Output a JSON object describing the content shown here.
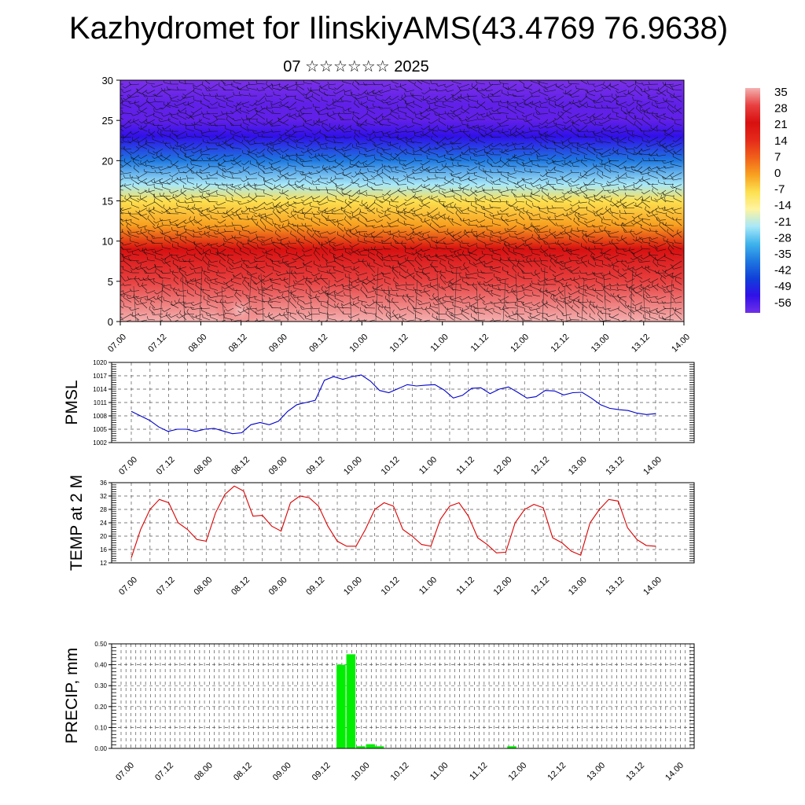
{
  "title": "Kazhydromet for IlinskiyAMS(43.4769 76.9638)",
  "subtitle": "07 ☆☆☆☆☆☆ 2025",
  "chart_data": [
    {
      "type": "heatmap",
      "name": "vertical-profile",
      "ylim": [
        0,
        30
      ],
      "yticks": [
        0,
        5,
        10,
        15,
        20,
        25,
        30
      ],
      "xticks": [
        "07.00",
        "07.12",
        "08.00",
        "08.12",
        "09.00",
        "09.12",
        "10.00",
        "10.12",
        "11.00",
        "11.12",
        "12.00",
        "12.12",
        "13.00",
        "13.12",
        "14.00"
      ],
      "colorbar": {
        "labels": [
          35,
          28,
          21,
          14,
          7,
          0,
          -7,
          -14,
          -21,
          -28,
          -35,
          -42,
          -49,
          -56
        ],
        "colors": [
          "#f4b0b0",
          "#e84040",
          "#d81010",
          "#e42a1a",
          "#f0601a",
          "#f8a020",
          "#fce050",
          "#fff4a0",
          "#a8e8f8",
          "#40b4ec",
          "#1e78e0",
          "#1040d8",
          "#3010e8",
          "#7030e8"
        ]
      },
      "levels": [
        {
          "height": 0,
          "value": 33
        },
        {
          "height": 5,
          "value": 27
        },
        {
          "height": 9,
          "value": 18
        },
        {
          "height": 12,
          "value": 3
        },
        {
          "height": 15,
          "value": -9
        },
        {
          "height": 17,
          "value": -20
        },
        {
          "height": 20,
          "value": -33
        },
        {
          "height": 23,
          "value": -50
        },
        {
          "height": 25,
          "value": -56
        },
        {
          "height": 27,
          "value": -60
        },
        {
          "height": 30,
          "value": -64
        }
      ]
    },
    {
      "type": "line",
      "ylabel": "PMSL",
      "ylim": [
        1002,
        1020
      ],
      "yticks": [
        1002,
        1005,
        1008,
        1011,
        1014,
        1017,
        1020
      ],
      "xticks": [
        "07.00",
        "07.12",
        "08.00",
        "08.12",
        "09.00",
        "09.12",
        "10.00",
        "10.12",
        "11.00",
        "11.12",
        "12.00",
        "12.12",
        "13.00",
        "13.12",
        "14.00"
      ],
      "color": "#0000cc",
      "values": [
        1009,
        1008,
        1007,
        1005.5,
        1004.5,
        1005,
        1005,
        1004.5,
        1005,
        1005.2,
        1004.6,
        1004,
        1004.2,
        1006,
        1006.5,
        1006,
        1006.8,
        1009,
        1010.5,
        1011,
        1011.5,
        1016,
        1016.8,
        1016.2,
        1016.8,
        1017.2,
        1015.8,
        1013.7,
        1013.2,
        1014.1,
        1015,
        1014.7,
        1014.9,
        1015,
        1013.8,
        1012,
        1012.6,
        1014.2,
        1014.3,
        1013,
        1014,
        1014.5,
        1013.3,
        1012,
        1012.3,
        1013.7,
        1013.6,
        1012.7,
        1013.2,
        1013.3,
        1012,
        1010.5,
        1009.7,
        1009.4,
        1009.2,
        1008.6,
        1008.3,
        1008.5
      ]
    },
    {
      "type": "line",
      "ylabel": "TEMP at 2 M",
      "ylim": [
        12,
        36
      ],
      "yticks": [
        12,
        16,
        20,
        24,
        28,
        32,
        36
      ],
      "xticks": [
        "07.00",
        "07.12",
        "08.00",
        "08.12",
        "09.00",
        "09.12",
        "10.00",
        "10.12",
        "11.00",
        "11.12",
        "12.00",
        "12.12",
        "13.00",
        "13.12",
        "14.00"
      ],
      "color": "#dd0000",
      "values": [
        13.5,
        22,
        28,
        31,
        30,
        24,
        22,
        19,
        18.5,
        27,
        32.5,
        35,
        33.5,
        26,
        26.2,
        23,
        21.5,
        30,
        32,
        31.5,
        29,
        23,
        18.5,
        17,
        17,
        22,
        28,
        30,
        29,
        22,
        20,
        17.5,
        17,
        25,
        29,
        30,
        26,
        19.5,
        17.5,
        15,
        15.2,
        24,
        28,
        29.5,
        28.5,
        19.5,
        18,
        15.5,
        14.3,
        24,
        28,
        31,
        30.5,
        22.5,
        19,
        17.2,
        17
      ]
    },
    {
      "type": "bar",
      "ylabel": "PRECIP, mm",
      "ylim": [
        0,
        0.5
      ],
      "yticks": [
        "0.00",
        "0.10",
        "0.20",
        "0.30",
        "0.40",
        "0.50"
      ],
      "xticks": [
        "07.00",
        "07.12",
        "08.00",
        "08.12",
        "09.00",
        "09.12",
        "10.00",
        "10.12",
        "11.00",
        "11.12",
        "12.00",
        "12.12",
        "13.00",
        "13.12",
        "14.00"
      ],
      "color": "#00ee00",
      "bars": [
        {
          "x": 21.7,
          "value": 0.4
        },
        {
          "x": 22.7,
          "value": 0.45
        },
        {
          "x": 23.7,
          "value": 0.01
        },
        {
          "x": 24.7,
          "value": 0.02
        },
        {
          "x": 25.6,
          "value": 0.01
        },
        {
          "x": 39.1,
          "value": 0.01
        }
      ]
    }
  ]
}
